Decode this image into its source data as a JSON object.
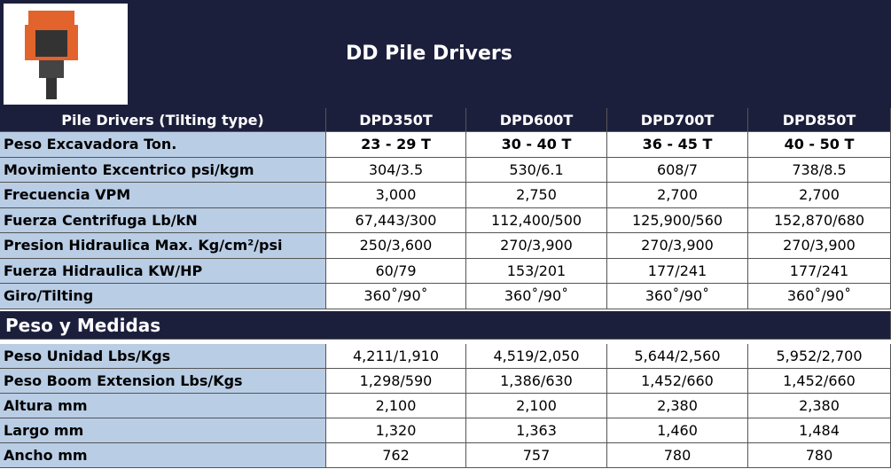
{
  "header": {
    "title": "DD Pile Drivers"
  },
  "specs": {
    "columns": [
      "Pile Drivers (Tilting type)",
      "DPD350T",
      "DPD600T",
      "DPD700T",
      "DPD850T"
    ],
    "rows": [
      [
        "Peso Excavadora Ton.",
        "23 - 29 T",
        "30 - 40 T",
        "36 - 45 T",
        "40 - 50 T"
      ],
      [
        "Movimiento Excentrico psi/kgm",
        "304/3.5",
        "530/6.1",
        "608/7",
        "738/8.5"
      ],
      [
        "Frecuencia VPM",
        "3,000",
        "2,750",
        "2,700",
        "2,700"
      ],
      [
        "Fuerza Centrifuga Lb/kN",
        "67,443/300",
        "112,400/500",
        "125,900/560",
        "152,870/680"
      ],
      [
        "Presion Hidraulica Max. Kg/cm²/psi",
        "250/3,600",
        "270/3,900",
        "270/3,900",
        "270/3,900"
      ],
      [
        "Fuerza Hidraulica KW/HP",
        "60/79",
        "153/201",
        "177/241",
        "177/241"
      ],
      [
        "Giro/Tilting",
        "360˚/90˚",
        "360˚/90˚",
        "360˚/90˚",
        "360˚/90˚"
      ]
    ]
  },
  "weights": {
    "title": "Peso y Medidas",
    "rows": [
      [
        "Peso Unidad Lbs/Kgs",
        "4,211/1,910",
        "4,519/2,050",
        "5,644/2,560",
        "5,952/2,700"
      ],
      [
        "Peso Boom Extension Lbs/Kgs",
        "1,298/590",
        "1,386/630",
        "1,452/660",
        "1,452/660"
      ],
      [
        "Altura mm",
        "2,100",
        "2,100",
        "2,380",
        "2,380"
      ],
      [
        "Largo mm",
        "1,320",
        "1,363",
        "1,460",
        "1,484"
      ],
      [
        "Ancho mm",
        "762",
        "757",
        "780",
        "780"
      ]
    ]
  }
}
